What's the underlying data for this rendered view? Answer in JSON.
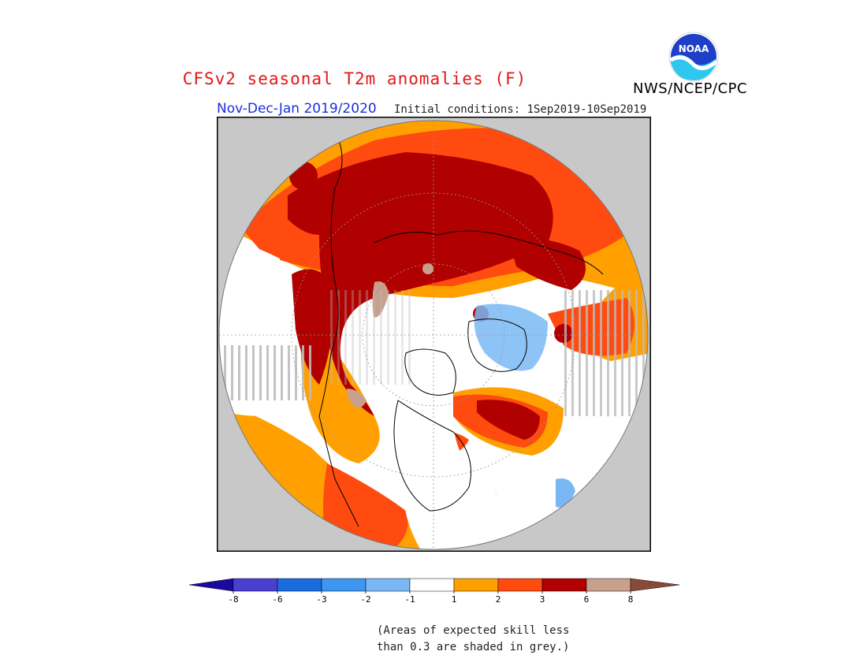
{
  "header": {
    "title": "CFSv2 seasonal T2m anomalies (F)",
    "org": "NWS/NCEP/CPC",
    "season": "Nov-Dec-Jan 2019/2020",
    "initial_conditions": "Initial conditions: 1Sep2019-10Sep2019",
    "logo_text": "NOAA"
  },
  "colorbar": {
    "colors": [
      "#1a0a9e",
      "#4a3fd0",
      "#1a6be0",
      "#3d96f0",
      "#7ab8f5",
      "#ffffff",
      "#ffa000",
      "#ff4a10",
      "#b00000",
      "#c8a08c",
      "#8a4a3a"
    ],
    "ticks": [
      "-8",
      "-6",
      "-3",
      "-2",
      "-1",
      "1",
      "2",
      "3",
      "6",
      "8"
    ]
  },
  "note": {
    "line1": "(Areas of expected skill less",
    "line2": "than 0.3 are shaded in grey.)"
  },
  "palette": {
    "background": "#c8c8c8",
    "frame": "#000000",
    "skill_grey": "#bcbcbc"
  }
}
